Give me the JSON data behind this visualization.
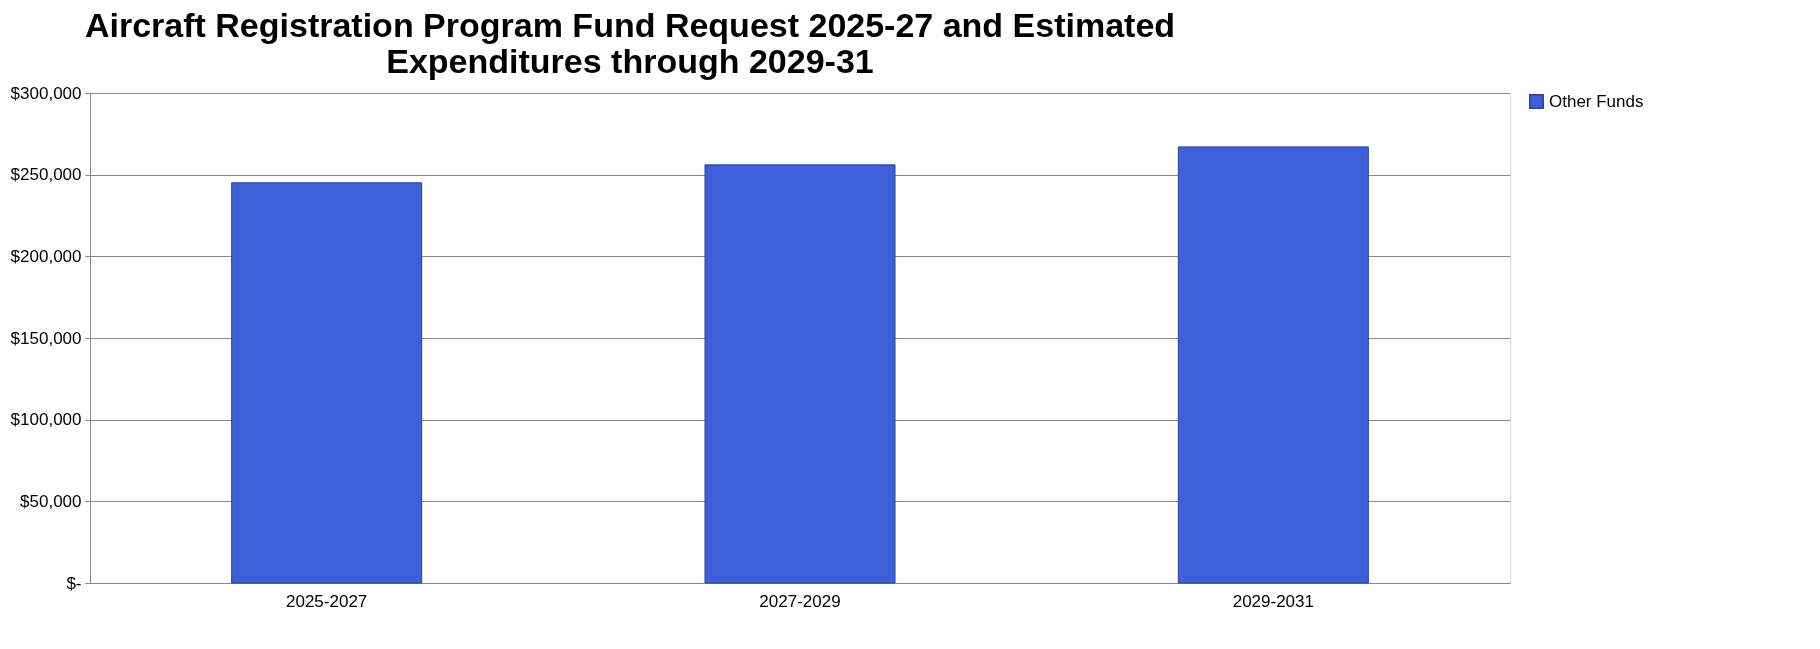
{
  "chart_data": {
    "type": "bar",
    "title": [
      "Aircraft Registration Program Fund Request 2025-27 and Estimated",
      "Expenditures through 2029-31"
    ],
    "categories": [
      "2025-2027",
      "2027-2029",
      "2029-2031"
    ],
    "series": [
      {
        "name": "Other Funds",
        "color": "#3d5fd9",
        "values": [
          245000,
          256000,
          267000
        ]
      }
    ],
    "ylim": [
      0,
      300000
    ],
    "yticks": [
      {
        "value": 0,
        "label": "$-"
      },
      {
        "value": 50000,
        "label": "$50,000"
      },
      {
        "value": 100000,
        "label": "$100,000"
      },
      {
        "value": 150000,
        "label": "$150,000"
      },
      {
        "value": 200000,
        "label": "$200,000"
      },
      {
        "value": 250000,
        "label": "$250,000"
      },
      {
        "value": 300000,
        "label": "$300,000"
      }
    ],
    "grid": "y",
    "legend": "right"
  }
}
